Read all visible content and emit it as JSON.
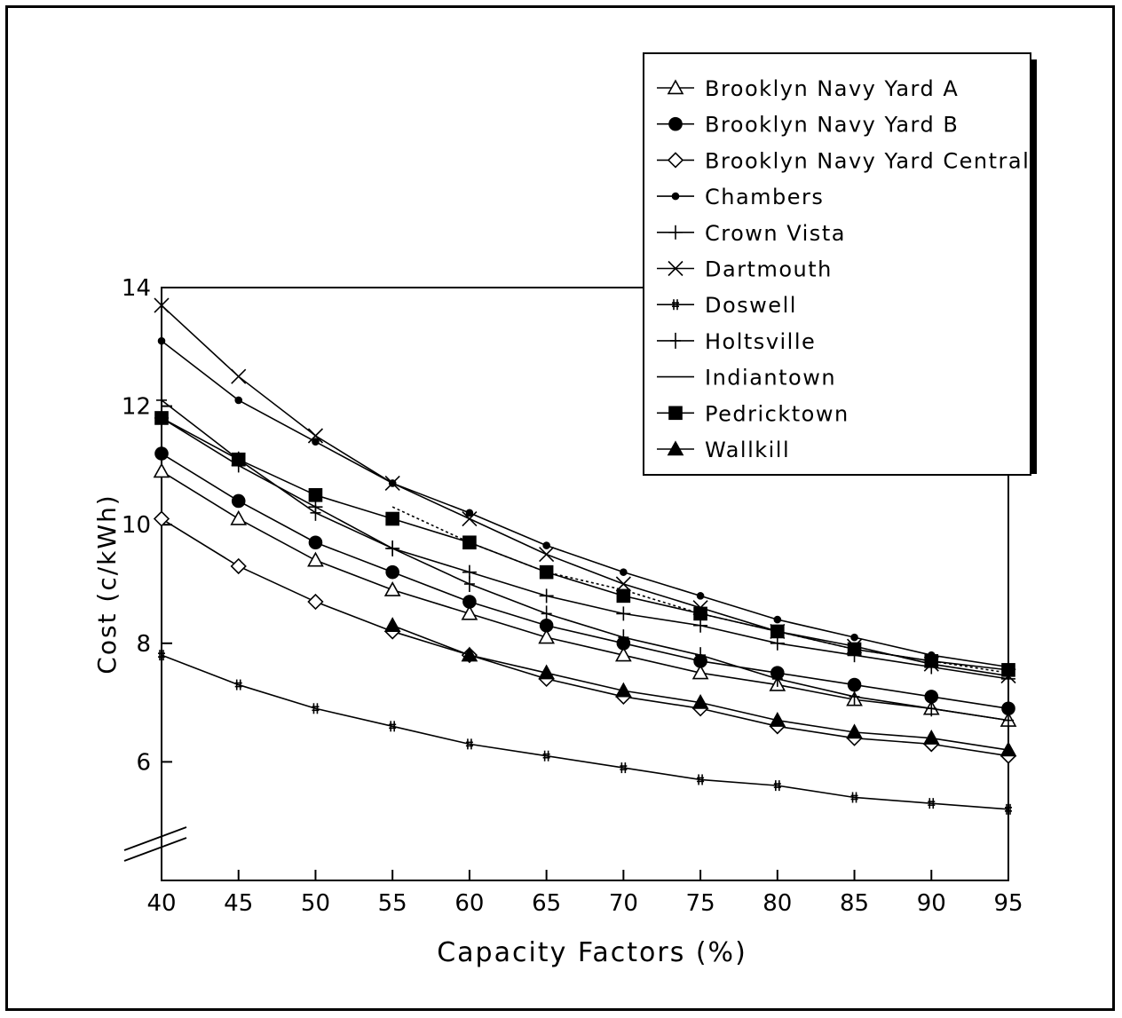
{
  "chart_data": {
    "type": "line",
    "title": "",
    "xlabel": "Capacity Factors (%)",
    "ylabel": "Cost (c/kWh)",
    "x": [
      40,
      45,
      50,
      55,
      60,
      65,
      70,
      75,
      80,
      85,
      90,
      95
    ],
    "x_ticks": [
      "40",
      "45",
      "50",
      "55",
      "60",
      "65",
      "70",
      "75",
      "80",
      "85",
      "90",
      "95"
    ],
    "y_ticks": [
      "6",
      "8",
      "10",
      "12",
      "14"
    ],
    "y_tick_values": [
      6,
      8,
      10,
      12,
      14
    ],
    "xlim": [
      40,
      95
    ],
    "ylim": [
      4,
      14
    ],
    "y_axis_break": true,
    "grid": false,
    "legend_position": "top-right",
    "series": [
      {
        "name": "Brooklyn Navy Yard A",
        "marker": "triangle-open",
        "values": [
          10.9,
          10.1,
          9.4,
          8.9,
          8.5,
          8.1,
          7.8,
          7.5,
          7.3,
          7.05,
          6.9,
          6.7
        ]
      },
      {
        "name": "Brooklyn Navy Yard B",
        "marker": "circle-filled",
        "values": [
          11.2,
          10.4,
          9.7,
          9.2,
          8.7,
          8.3,
          8.0,
          7.7,
          7.5,
          7.3,
          7.1,
          6.9
        ]
      },
      {
        "name": "Brooklyn Navy Yard Central",
        "marker": "diamond-open",
        "values": [
          10.1,
          9.3,
          8.7,
          8.2,
          7.8,
          7.4,
          7.1,
          6.9,
          6.6,
          6.4,
          6.3,
          6.1
        ]
      },
      {
        "name": "Chambers",
        "marker": "dot",
        "values": [
          13.1,
          12.1,
          11.4,
          10.7,
          10.2,
          9.65,
          9.2,
          8.8,
          8.4,
          8.1,
          7.8,
          7.6
        ]
      },
      {
        "name": "Crown Vista",
        "marker": "plus",
        "values": [
          11.8,
          11.0,
          10.3,
          9.6,
          9.2,
          8.8,
          8.5,
          8.3,
          8.0,
          7.8,
          7.6,
          7.4
        ]
      },
      {
        "name": "Dartmouth",
        "marker": "x",
        "values": [
          13.7,
          12.5,
          11.5,
          10.7,
          10.1,
          9.5,
          9.0,
          8.6,
          8.2,
          7.95,
          7.65,
          7.45
        ]
      },
      {
        "name": "Doswell",
        "marker": "hash",
        "values": [
          7.8,
          7.3,
          6.9,
          6.6,
          6.3,
          6.1,
          5.9,
          5.7,
          5.6,
          5.4,
          5.3,
          5.2
        ]
      },
      {
        "name": "Holtsville",
        "marker": "plus-small",
        "values": [
          12.1,
          11.1,
          10.2,
          9.6,
          9.0,
          8.5,
          8.1,
          7.8,
          7.4,
          7.1,
          6.9,
          6.7
        ]
      },
      {
        "name": "Indiantown",
        "marker": "none",
        "values": [
          null,
          null,
          null,
          10.3,
          9.7,
          9.2,
          8.9,
          8.5,
          8.2,
          7.9,
          7.7,
          7.5
        ]
      },
      {
        "name": "Pedricktown",
        "marker": "square-filled",
        "values": [
          11.8,
          11.1,
          10.5,
          10.1,
          9.7,
          9.2,
          8.8,
          8.5,
          8.2,
          7.9,
          7.7,
          7.55
        ]
      },
      {
        "name": "Wallkill",
        "marker": "triangle-filled",
        "values": [
          null,
          null,
          null,
          8.3,
          7.8,
          7.5,
          7.2,
          7.0,
          6.7,
          6.5,
          6.4,
          6.2
        ]
      }
    ]
  }
}
